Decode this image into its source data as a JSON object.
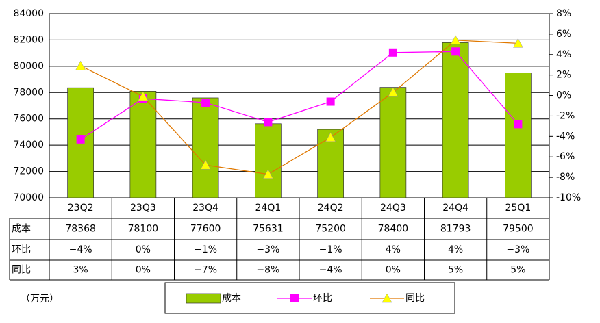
{
  "chart_data": {
    "type": "bar",
    "unit_label": "（万元）",
    "categories": [
      "23Q2",
      "23Q3",
      "23Q4",
      "24Q1",
      "24Q2",
      "24Q3",
      "24Q4",
      "25Q1"
    ],
    "series": [
      {
        "name": "成本",
        "type": "bar",
        "color": "#99cc00",
        "values": [
          78368,
          78100,
          77600,
          75631,
          75200,
          78400,
          81793,
          79500
        ]
      },
      {
        "name": "环比",
        "type": "line",
        "axis": "y2",
        "color": "#ff00ff",
        "marker": "square",
        "values": [
          -4.3,
          -0.3,
          -0.7,
          -2.6,
          -0.6,
          4.2,
          4.3,
          -2.8
        ],
        "value_labels": [
          "−4%",
          "0%",
          "−1%",
          "−3%",
          "−1%",
          "4%",
          "4%",
          "−3%"
        ]
      },
      {
        "name": "同比",
        "type": "line",
        "axis": "y2",
        "color": "#e07800",
        "marker_color": "#ffff00",
        "marker": "triangle",
        "values": [
          2.9,
          -0.1,
          -6.8,
          -7.7,
          -4.1,
          0.3,
          5.4,
          5.1
        ],
        "value_labels": [
          "3%",
          "0%",
          "−7%",
          "−8%",
          "−4%",
          "0%",
          "5%",
          "5%"
        ]
      }
    ],
    "ylim": [
      70000,
      84000
    ],
    "yticks": [
      70000,
      72000,
      74000,
      76000,
      78000,
      80000,
      82000,
      84000
    ],
    "y2lim": [
      -10,
      8
    ],
    "y2ticks": [
      {
        "value": -10,
        "label": "-10%"
      },
      {
        "value": -8,
        "label": "-8%"
      },
      {
        "value": -6,
        "label": "-6%"
      },
      {
        "value": -4,
        "label": "-4%"
      },
      {
        "value": -2,
        "label": "-2%"
      },
      {
        "value": 0,
        "label": "0%"
      },
      {
        "value": 2,
        "label": "2%"
      },
      {
        "value": 4,
        "label": "4%"
      },
      {
        "value": 6,
        "label": "6%"
      },
      {
        "value": 8,
        "label": "8%"
      }
    ],
    "grid": true
  }
}
